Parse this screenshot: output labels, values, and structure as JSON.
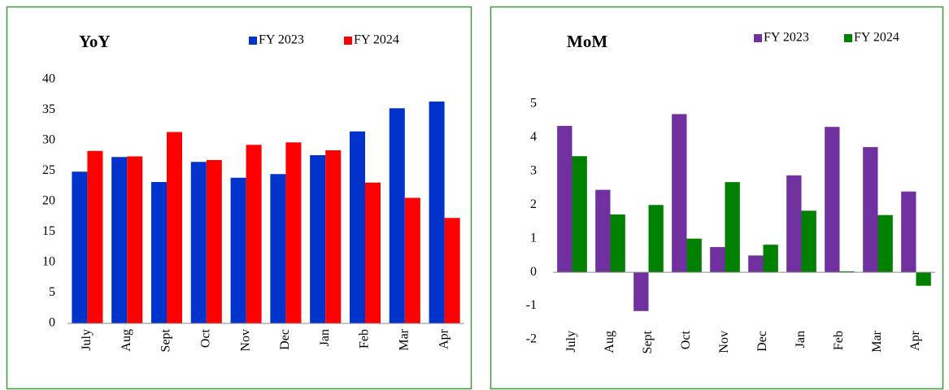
{
  "chart_data": [
    {
      "type": "bar",
      "title": "YoY",
      "categories": [
        "July",
        "Aug",
        "Sept",
        "Oct",
        "Nov",
        "Dec",
        "Jan",
        "Feb",
        "Mar",
        "Apr"
      ],
      "series": [
        {
          "name": "FY 2023",
          "color": "#0033cc",
          "values": [
            24.9,
            27.3,
            23.2,
            26.5,
            23.9,
            24.5,
            27.6,
            31.5,
            35.3,
            36.4
          ]
        },
        {
          "name": "FY 2024",
          "color": "#ff0000",
          "values": [
            28.3,
            27.4,
            31.4,
            26.8,
            29.3,
            29.7,
            28.4,
            23.1,
            20.6,
            17.3
          ]
        }
      ],
      "ylim": [
        0,
        40
      ],
      "yticks": [
        0,
        5,
        10,
        15,
        20,
        25,
        30,
        35,
        40
      ],
      "legend": "top"
    },
    {
      "type": "bar",
      "title": "MoM",
      "categories": [
        "July",
        "Aug",
        "Sept",
        "Oct",
        "Nov",
        "Dec",
        "Jan",
        "Feb",
        "Mar",
        "Apr"
      ],
      "series": [
        {
          "name": "FY 2023",
          "color": "#7030a0",
          "values": [
            4.35,
            2.45,
            -1.15,
            4.7,
            0.75,
            0.5,
            2.88,
            4.32,
            3.72,
            2.4
          ]
        },
        {
          "name": "FY 2024",
          "color": "#008000",
          "values": [
            3.45,
            1.72,
            2.0,
            1.0,
            2.68,
            0.82,
            1.83,
            0.03,
            1.7,
            -0.4
          ]
        }
      ],
      "ylim": [
        -2,
        5
      ],
      "yticks": [
        -2,
        -1,
        0,
        1,
        2,
        3,
        4,
        5
      ],
      "legend": "top"
    }
  ]
}
